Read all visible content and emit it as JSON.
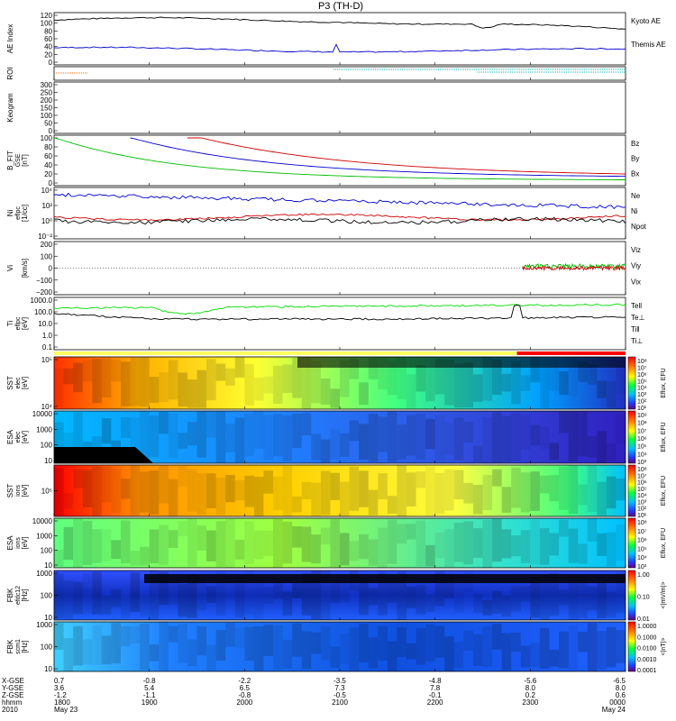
{
  "chart_data": {
    "type": "line",
    "title": "P3 (TH-D)",
    "panels": [
      {
        "id": "ae",
        "ylabel": "AE Index",
        "yticks": [
          "120",
          "100",
          "80",
          "60",
          "40",
          "20",
          "0"
        ],
        "legend": [
          {
            "label": "Kyoto AE",
            "color": "#0000cc"
          },
          {
            "label": "Themis AE",
            "color": "#000000"
          }
        ]
      },
      {
        "id": "roi",
        "ylabel": "ROI",
        "yticks": [],
        "legend": []
      },
      {
        "id": "keogram",
        "ylabel": "Keogram",
        "yticks": [
          "300",
          "250",
          "200",
          "150",
          "100",
          "50",
          "0"
        ],
        "legend": []
      },
      {
        "id": "bfit",
        "ylabel": "B_FIT",
        "ylabel2": "GSE",
        "ylabel3": "[nT]",
        "yticks": [
          "100",
          "80",
          "60",
          "40",
          "20",
          "0"
        ],
        "legend": [
          {
            "label": "Bz",
            "color": "#cc0000"
          },
          {
            "label": "By",
            "color": "#00bb00"
          },
          {
            "label": "Bx",
            "color": "#0000cc"
          }
        ]
      },
      {
        "id": "ni",
        "ylabel": "Ni",
        "ylabel2": "eflpc",
        "ylabel3": "[1/cc]",
        "yticks": [
          "10⁴",
          "10²",
          "10⁰",
          "10⁻²"
        ],
        "legend": [
          {
            "label": "Ne",
            "color": "#cc0000"
          },
          {
            "label": "Ni",
            "color": "#000000"
          },
          {
            "label": "Npot",
            "color": "#0000cc"
          }
        ]
      },
      {
        "id": "vi",
        "ylabel": "Vi",
        "ylabel3": "[km/s]",
        "yticks": [
          "200",
          "100",
          "0",
          "−100",
          "−200"
        ],
        "legend": [
          {
            "label": "Viz",
            "color": "#cc0000"
          },
          {
            "label": "Viy",
            "color": "#00bb00"
          },
          {
            "label": "Vix",
            "color": "#0000cc"
          }
        ]
      },
      {
        "id": "ti",
        "ylabel": "Ti",
        "ylabel2": "eflpc",
        "ylabel3": "[eV]",
        "yticks": [
          "1000.0",
          "100.0",
          "10.0",
          "1.0",
          "0.1"
        ],
        "legend": [
          {
            "label": "Tell",
            "color": "#000000"
          },
          {
            "label": "Te⊥",
            "color": "#cc0000"
          },
          {
            "label": "Ti‖",
            "color": "#00bb00"
          },
          {
            "label": "Ti⊥",
            "color": "#0000cc"
          }
        ]
      },
      {
        "id": "sst_e",
        "ylabel": "SST",
        "ylabel2": "elec",
        "ylabel3": "[eV]",
        "yticks": [
          "10⁵",
          "10⁴"
        ],
        "cbar": [
          "10⁸",
          "10⁷",
          "10⁶",
          "10⁵",
          "10⁴",
          "10³",
          "10²",
          "10¹"
        ],
        "cbar_label": "Eflux, EFU"
      },
      {
        "id": "esa_e",
        "ylabel": "ESA",
        "ylabel2": "elec",
        "ylabel3": "[eV]",
        "yticks": [
          "10000",
          "1000",
          "100",
          "10"
        ],
        "cbar": [
          "10⁹",
          "10⁸",
          "10⁷",
          "10⁶",
          "10⁵",
          "10⁴",
          "10³"
        ],
        "cbar_label": "Eflux, EFU"
      },
      {
        "id": "sst_i",
        "ylabel": "SST",
        "ylabel2": "ions",
        "ylabel3": "[eV]",
        "yticks": [
          "10⁵"
        ],
        "cbar": [
          "10⁸",
          "10⁷",
          "10⁶",
          "10⁵",
          "10⁴",
          "10³",
          "10²",
          "10¹"
        ],
        "cbar_label": "Eflux, EFU"
      },
      {
        "id": "esa_i",
        "ylabel": "ESA",
        "ylabel2": "ions",
        "ylabel3": "[eV]",
        "yticks": [
          "10000",
          "1000",
          "100",
          "10"
        ],
        "cbar": [
          "10⁸",
          "10⁷",
          "10⁶",
          "10⁵",
          "10⁴",
          "10³"
        ],
        "cbar_label": "Eflux, EFU"
      },
      {
        "id": "fbk1",
        "ylabel": "FBK",
        "ylabel2": "efdc12",
        "ylabel3": "[Hz]",
        "yticks": [
          "1000",
          "100",
          "10"
        ],
        "cbar": [
          "1.00",
          "0.10",
          "0.01"
        ],
        "cbar_label": "<|mV/m|>"
      },
      {
        "id": "fbk2",
        "ylabel": "FBK",
        "ylabel2": "scm1",
        "ylabel3": "[Hz]",
        "yticks": [
          "1000",
          "100",
          "10"
        ],
        "cbar": [
          "1.0000",
          "0.1000",
          "0.0100",
          "0.0010",
          "0.0001"
        ],
        "cbar_label": "<|nT|>"
      }
    ],
    "xaxis": {
      "row_labels": [
        "X-GSE",
        "Y-GSE",
        "Z-GSE",
        "hhmm",
        "2010"
      ],
      "ticks": [
        {
          "x": "0.7",
          "y": "3.6",
          "z": "-1.2",
          "t": "1800",
          "d": "May 23"
        },
        {
          "x": "-0.8",
          "y": "5.4",
          "z": "-1.1",
          "t": "1900",
          "d": ""
        },
        {
          "x": "-2.2",
          "y": "6.5",
          "z": "-0.8",
          "t": "2000",
          "d": ""
        },
        {
          "x": "-3.5",
          "y": "7.3",
          "z": "-0.5",
          "t": "2100",
          "d": ""
        },
        {
          "x": "-4.8",
          "y": "7.8",
          "z": "-0.1",
          "t": "2200",
          "d": ""
        },
        {
          "x": "-5.6",
          "y": "8.0",
          "z": "0.2",
          "t": "2300",
          "d": ""
        },
        {
          "x": "-6.5",
          "y": "8.0",
          "z": "0.6",
          "t": "0000",
          "d": "May 24"
        }
      ]
    }
  }
}
